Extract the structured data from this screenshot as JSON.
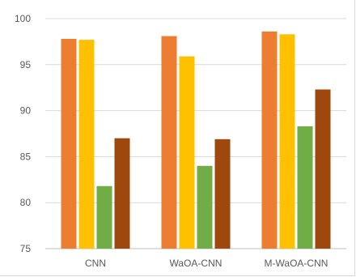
{
  "chart_data": {
    "type": "bar",
    "categories": [
      "CNN",
      "WaOA-CNN",
      "M-WaOA-CNN"
    ],
    "series": [
      {
        "values": [
          97.8,
          98.1,
          98.6
        ],
        "color": "#ED7D31"
      },
      {
        "values": [
          97.7,
          95.9,
          98.3
        ],
        "color": "#FFC000"
      },
      {
        "values": [
          81.8,
          84.0,
          88.3
        ],
        "color": "#70AD47"
      },
      {
        "values": [
          87.0,
          86.9,
          92.3
        ],
        "color": "#9E480E"
      }
    ],
    "title": "",
    "xlabel": "",
    "ylabel": "",
    "ylim": [
      75,
      100
    ],
    "yticks": [
      "75",
      "80",
      "85",
      "90",
      "95",
      "100"
    ],
    "grid": true,
    "legend": "none"
  },
  "colors": {
    "grid": "#D9D9D9",
    "axis": "#BFBFBF",
    "text": "#595959"
  }
}
